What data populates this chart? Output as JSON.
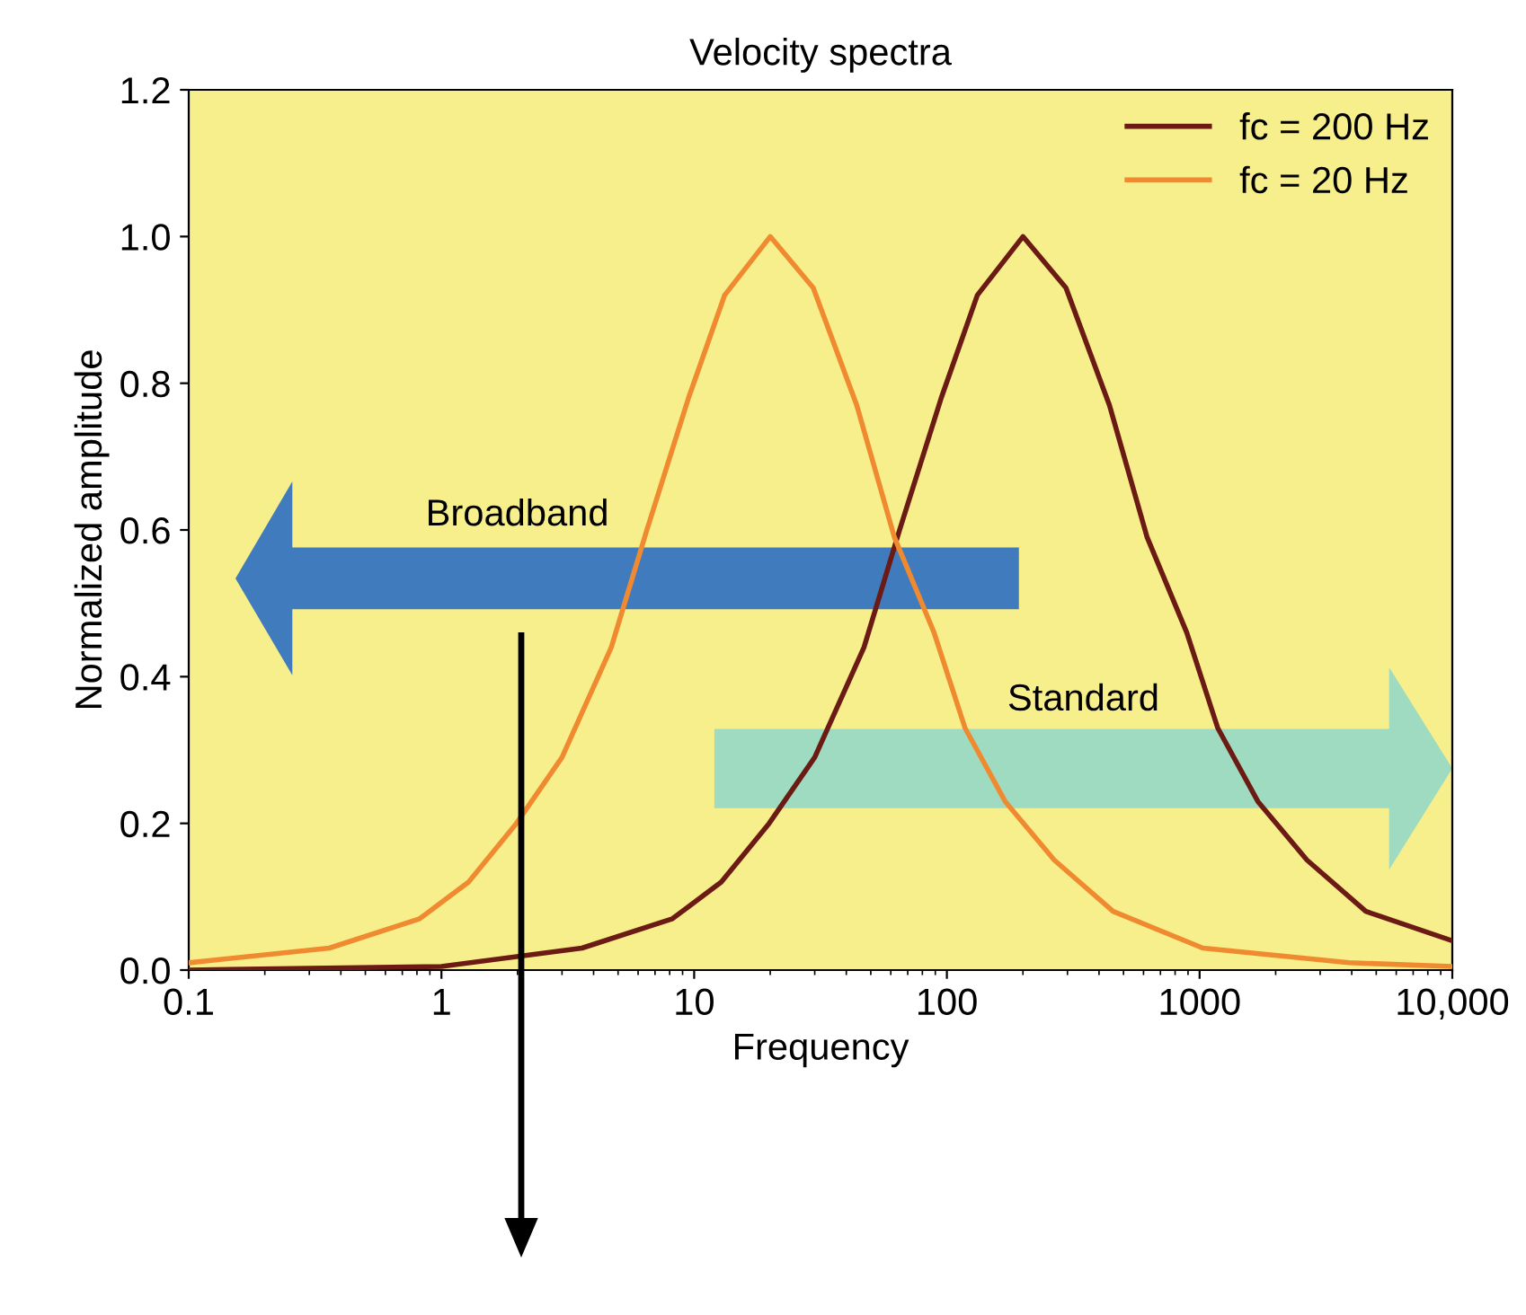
{
  "chart_data": {
    "type": "line",
    "title": "Velocity spectra",
    "xlabel": "Frequency",
    "ylabel": "Normalized amplitude",
    "log": "x",
    "xlim": [
      0.1,
      10000
    ],
    "xticks": [
      0.1,
      1,
      10,
      100,
      1000,
      {
        "value": 10000,
        "label": "10,000"
      }
    ],
    "ylim": [
      0,
      1.2
    ],
    "yticks": [
      {
        "value": 0,
        "label": "0.0"
      },
      {
        "value": 0.2,
        "label": "0.2"
      },
      {
        "value": 0.4,
        "label": "0.4"
      },
      {
        "value": 0.6,
        "label": "0.6"
      },
      {
        "value": 0.8,
        "label": "0.8"
      },
      {
        "value": 1.0,
        "label": "1.0"
      },
      {
        "value": 1.2,
        "label": "1.2"
      }
    ],
    "grid": false,
    "legend": "top right",
    "line_style": "solid",
    "marker": "none",
    "series": [
      {
        "name": "fc = 200 Hz",
        "color": "#6b1a14",
        "x": [
          0.1,
          1,
          3.6,
          8.2,
          12.8,
          19.8,
          30,
          47,
          65,
          95,
          132,
          200,
          296,
          440,
          620,
          890,
          1180,
          1700,
          2660,
          4550,
          10000
        ],
        "values": [
          0.0,
          0.005,
          0.03,
          0.07,
          0.12,
          0.2,
          0.29,
          0.44,
          0.6,
          0.78,
          0.92,
          1.0,
          0.93,
          0.77,
          0.59,
          0.46,
          0.33,
          0.23,
          0.15,
          0.08,
          0.04
        ]
      },
      {
        "name": "fc = 20 Hz",
        "color": "#f08a30",
        "x": [
          0.1,
          0.36,
          0.82,
          1.28,
          1.98,
          3.0,
          4.7,
          6.5,
          9.5,
          13.2,
          20,
          29.6,
          44,
          62,
          89,
          118,
          170,
          266,
          455,
          1030,
          3900,
          10000
        ],
        "values": [
          0.01,
          0.03,
          0.07,
          0.12,
          0.2,
          0.29,
          0.44,
          0.6,
          0.78,
          0.92,
          1.0,
          0.93,
          0.77,
          0.59,
          0.46,
          0.33,
          0.23,
          0.15,
          0.08,
          0.03,
          0.01,
          0.005
        ]
      }
    ],
    "annotations": [
      "Broadband",
      "Standard"
    ]
  }
}
